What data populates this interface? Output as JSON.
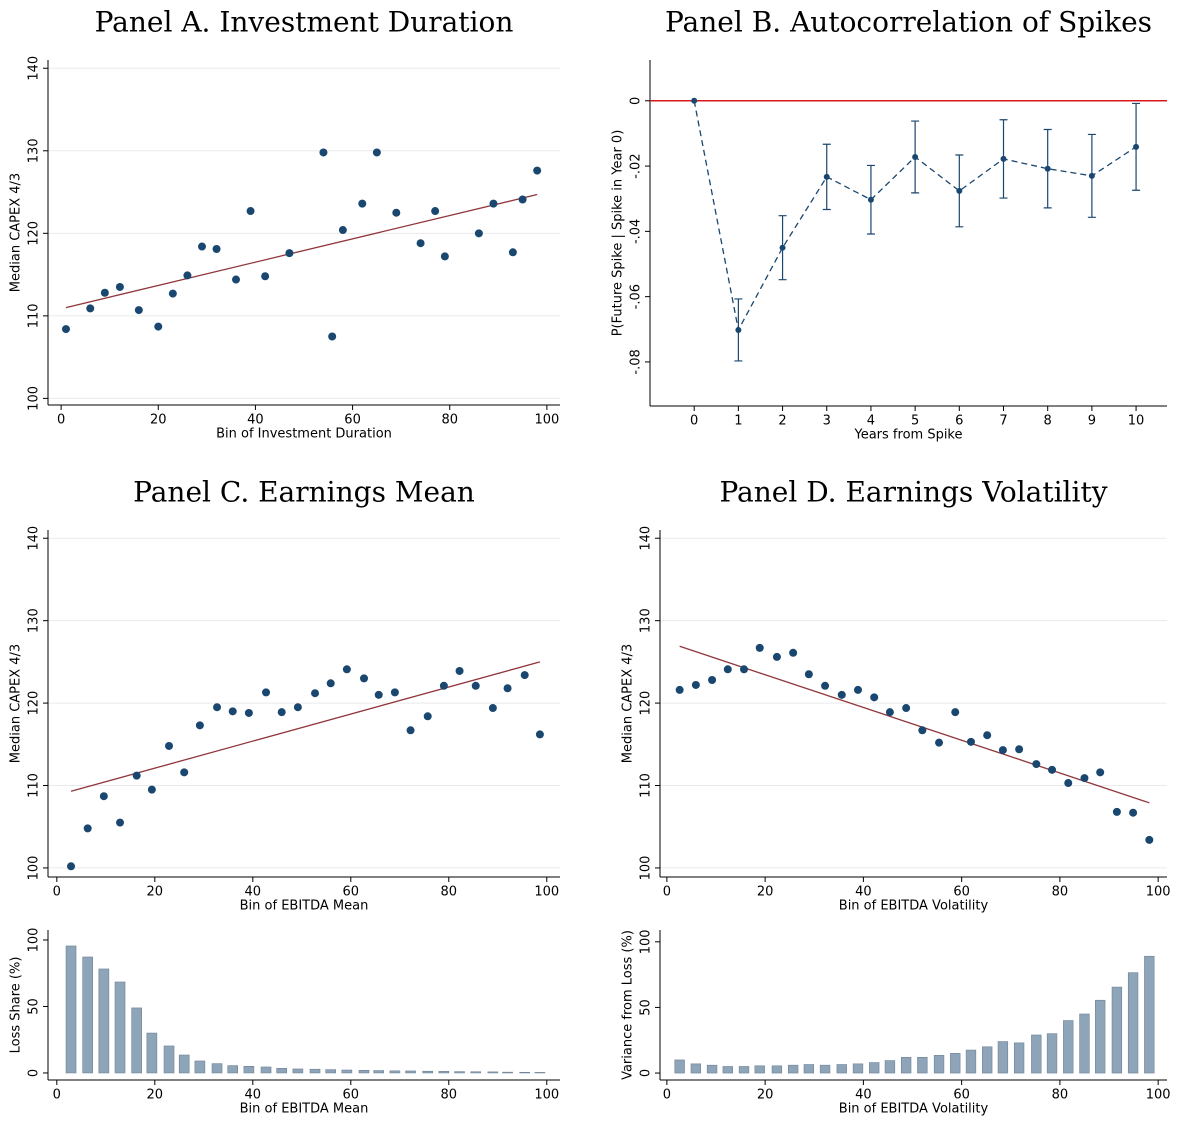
{
  "chart_data": [
    {
      "type": "scatter",
      "title": "Panel A. Investment Duration",
      "xlabel": "Bin of Investment Duration",
      "ylabel": "Median CAPEX 4/3",
      "x": [
        1,
        6,
        9,
        12.1,
        16,
        20,
        23,
        26,
        29,
        32,
        36,
        39,
        42,
        47,
        54,
        55.8,
        58,
        62,
        65,
        69,
        74,
        77,
        79,
        86,
        89,
        93,
        95,
        98
      ],
      "y": [
        108.4,
        110.9,
        112.8,
        113.5,
        110.7,
        108.7,
        112.7,
        114.9,
        118.4,
        118.1,
        114.4,
        122.7,
        114.8,
        117.6,
        129.8,
        107.5,
        120.4,
        123.6,
        129.8,
        122.5,
        118.8,
        122.7,
        117.2,
        120,
        123.6,
        117.7,
        124.1,
        127.6
      ],
      "color": "#1a476f",
      "fit": {
        "x": [
          1,
          98
        ],
        "y": [
          111,
          124.7
        ],
        "color": "#90353b"
      },
      "xlim": [
        -2.7,
        102.7
      ],
      "ylim": [
        99.2,
        141
      ],
      "xticks": [
        0,
        20,
        40,
        60,
        80,
        100
      ],
      "yticks": [
        100,
        110,
        120,
        130,
        140
      ],
      "grid": true
    },
    {
      "type": "errorbar_line",
      "title": "Panel B. Autocorrelation of Spikes",
      "xlabel": "Years from Spike",
      "ylabel": "P(Future Spike | Spike in Year 0)",
      "x": [
        0,
        1,
        2,
        3,
        4,
        5,
        6,
        7,
        8,
        9,
        10
      ],
      "y": [
        0,
        -0.0702,
        -0.045,
        -0.0233,
        -0.0303,
        -0.0172,
        -0.0276,
        -0.0178,
        -0.0208,
        -0.023,
        -0.0141
      ],
      "error": [
        0,
        0.0095,
        0.0098,
        0.01,
        0.0105,
        0.011,
        0.011,
        0.012,
        0.012,
        0.0127,
        0.0133
      ],
      "color": "#1a476f",
      "reference_line": {
        "y": 0,
        "color": "#d7191c"
      },
      "xlim": [
        -1,
        10.7
      ],
      "ylim": [
        -0.0935,
        0.0125
      ],
      "xticks": [
        0,
        1,
        2,
        3,
        4,
        5,
        6,
        7,
        8,
        9,
        10
      ],
      "yticks": [
        0,
        {
          "value": -0.02,
          "label": "-.02"
        },
        {
          "value": -0.04,
          "label": "-.04"
        },
        {
          "value": -0.06,
          "label": "-.06"
        },
        {
          "value": -0.08,
          "label": "-.08"
        }
      ],
      "grid": false
    },
    {
      "type": "scatter",
      "title": "Panel C. Earnings Mean",
      "xlabel": "Bin of EBITDA Mean",
      "ylabel": "Median CAPEX 4/3",
      "x": [
        2.9,
        6.3,
        9.6,
        12.9,
        16.3,
        19.4,
        22.9,
        26,
        29.2,
        32.7,
        35.9,
        39.2,
        42.7,
        45.9,
        49.2,
        52.7,
        55.9,
        59.2,
        62.7,
        65.7,
        69,
        72.2,
        75.7,
        79,
        82.2,
        85.5,
        89,
        92,
        95.5,
        98.6
      ],
      "y": [
        100.2,
        104.8,
        108.7,
        105.5,
        111.2,
        109.5,
        114.8,
        111.6,
        117.3,
        119.5,
        119,
        118.8,
        121.3,
        118.9,
        119.5,
        121.2,
        122.4,
        124.1,
        123,
        121,
        121.3,
        116.7,
        118.4,
        122.1,
        123.9,
        122.1,
        119.4,
        121.8,
        123.4,
        116.2
      ],
      "color": "#1a476f",
      "fit": {
        "x": [
          2.9,
          98.6
        ],
        "y": [
          109.3,
          125
        ],
        "color": "#90353b"
      },
      "xlim": [
        -1.8,
        102.7
      ],
      "ylim": [
        98.9,
        141
      ],
      "xticks": [
        0,
        20,
        40,
        60,
        80,
        100
      ],
      "yticks": [
        100,
        110,
        120,
        130,
        140
      ],
      "grid": true
    },
    {
      "type": "scatter",
      "title": "Panel D. Earnings Volatility",
      "xlabel": "Bin of EBITDA Volatility",
      "ylabel": "Median CAPEX 4/3",
      "x": [
        2.6,
        5.9,
        9.2,
        12.4,
        15.7,
        18.9,
        22.4,
        25.7,
        28.9,
        32.2,
        35.6,
        38.9,
        42.2,
        45.4,
        48.7,
        52,
        55.4,
        58.7,
        61.9,
        65.2,
        68.4,
        71.7,
        75.2,
        78.4,
        81.7,
        85,
        88.2,
        91.6,
        94.9,
        98.2
      ],
      "y": [
        121.6,
        122.2,
        122.8,
        124.1,
        124.1,
        126.7,
        125.6,
        126.1,
        123.5,
        122.1,
        121,
        121.6,
        120.7,
        118.9,
        119.4,
        116.7,
        115.2,
        118.9,
        115.3,
        116.1,
        114.3,
        114.4,
        112.6,
        111.9,
        110.3,
        110.9,
        111.6,
        106.8,
        106.7,
        103.4
      ],
      "color": "#1a476f",
      "fit": {
        "x": [
          2.6,
          98.2
        ],
        "y": [
          126.9,
          107.9
        ],
        "color": "#90353b"
      },
      "xlim": [
        -1.4,
        101.8
      ],
      "ylim": [
        98.9,
        141
      ],
      "xticks": [
        0,
        20,
        40,
        60,
        80,
        100
      ],
      "yticks": [
        100,
        110,
        120,
        130,
        140
      ],
      "grid": true
    },
    {
      "type": "bar",
      "xlabel": "Bin of EBITDA Mean",
      "ylabel": "Loss Share (%)",
      "x": [
        2.9,
        6.3,
        9.6,
        12.9,
        16.3,
        19.4,
        22.9,
        26,
        29.2,
        32.7,
        35.9,
        39.2,
        42.7,
        45.9,
        49.2,
        52.7,
        55.9,
        59.2,
        62.7,
        65.7,
        69,
        72.2,
        75.7,
        79,
        82.2,
        85.5,
        89,
        92,
        95.5,
        98.6
      ],
      "y": [
        95.5,
        87.2,
        78.2,
        68.4,
        48.9,
        30,
        20.3,
        13.5,
        9,
        7,
        5.5,
        5,
        4.5,
        3.5,
        3,
        2.8,
        2.5,
        2.2,
        2,
        1.8,
        1.6,
        1.5,
        1.3,
        1.2,
        1,
        0.9,
        0.8,
        0.6,
        0.5,
        0.4
      ],
      "color": "#8ea4b8",
      "xlim": [
        -1.8,
        102.7
      ],
      "ylim": [
        -5.3,
        107.5
      ],
      "xticks": [
        0,
        20,
        40,
        60,
        80,
        100
      ],
      "yticks": [
        0,
        50,
        100
      ],
      "grid": false
    },
    {
      "type": "bar",
      "xlabel": "Bin of EBITDA Volatility",
      "ylabel": "Variance from Loss (%)",
      "x": [
        2.6,
        5.9,
        9.2,
        12.4,
        15.7,
        18.9,
        22.4,
        25.7,
        28.9,
        32.2,
        35.6,
        38.9,
        42.2,
        45.4,
        48.7,
        52,
        55.4,
        58.7,
        61.9,
        65.2,
        68.4,
        71.7,
        75.2,
        78.4,
        81.7,
        85,
        88.2,
        91.6,
        94.9,
        98.2
      ],
      "y": [
        10,
        7,
        6,
        5,
        5,
        5.5,
        5.5,
        6,
        6.5,
        6,
        6.5,
        7,
        8,
        9.5,
        12,
        12,
        13.5,
        15,
        17.5,
        20,
        24,
        23,
        29,
        30,
        40,
        45,
        55.5,
        65.5,
        76.5,
        89
      ],
      "color": "#8ea4b8",
      "xlim": [
        -1.4,
        101.8
      ],
      "ylim": [
        -5.3,
        109
      ],
      "xticks": [
        0,
        20,
        40,
        60,
        80,
        100
      ],
      "yticks": [
        0,
        50,
        100
      ],
      "grid": false
    }
  ]
}
